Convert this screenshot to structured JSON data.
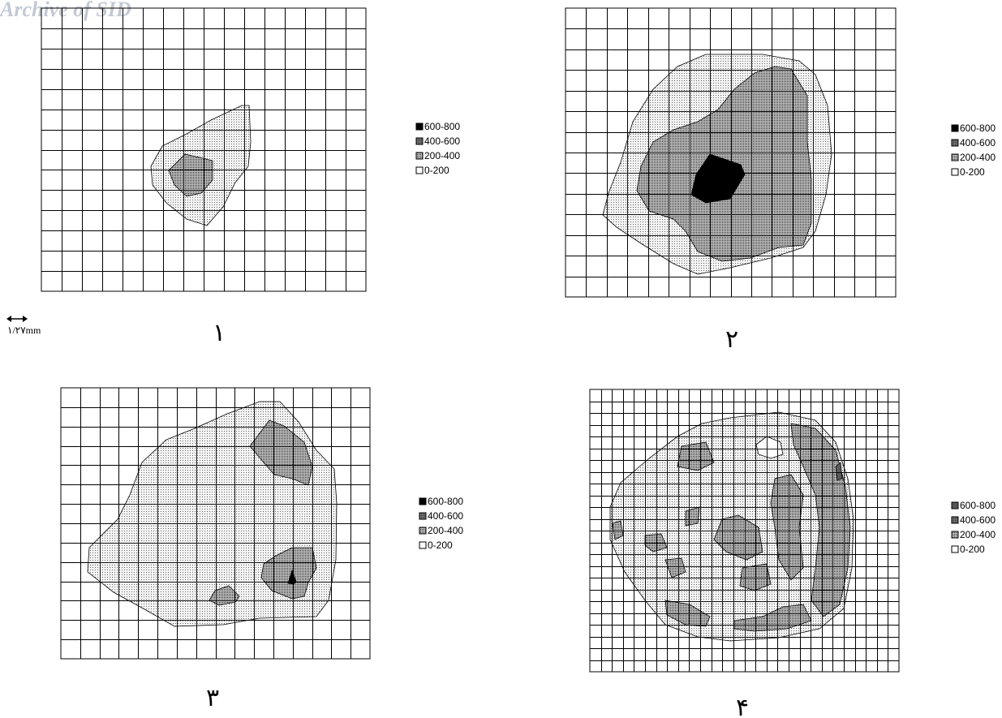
{
  "watermark": "Archive of SID",
  "scale": {
    "label": "۱/۲۷mm"
  },
  "patterns": {
    "0-200": "#ffffff",
    "200-400": "#e7e7e7",
    "400-600": "#a3a3a3",
    "600-800": "#000000",
    "600-800-alt": "#5a5a5a"
  },
  "panels": [
    {
      "label": "۱",
      "legend": [
        "600-800",
        "400-600",
        "200-400",
        "0-200"
      ]
    },
    {
      "label": "۲",
      "legend": [
        "600-800",
        "400-600",
        "200-400",
        "0-200"
      ]
    },
    {
      "label": "۳",
      "legend": [
        "600-800",
        "400-600",
        "200-400",
        "0-200"
      ]
    },
    {
      "label": "۴",
      "legend": [
        "600-800",
        "400-600",
        "200-400",
        "0-200"
      ]
    }
  ]
}
